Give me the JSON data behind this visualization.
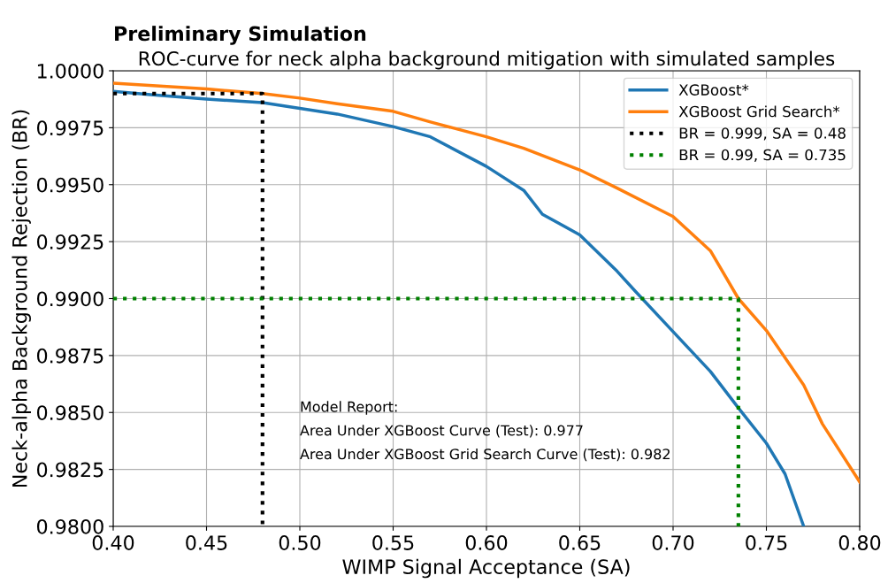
{
  "chart_data": {
    "type": "line",
    "title": "Preliminary Simulation",
    "subtitle": "ROC-curve for neck alpha background mitigation with simulated samples",
    "xlabel": "WIMP Signal Acceptance (SA)",
    "ylabel": "Neck-alpha Background Rejection (BR)",
    "series": [
      {
        "name": "XGBoost*",
        "color": "#1f77b4",
        "line_style": "solid",
        "x": [
          0.4,
          0.42,
          0.45,
          0.48,
          0.5,
          0.52,
          0.55,
          0.57,
          0.6,
          0.62,
          0.63,
          0.65,
          0.67,
          0.68,
          0.7,
          0.72,
          0.735,
          0.75,
          0.76,
          0.77
        ],
        "values": [
          0.9991,
          0.99895,
          0.99876,
          0.9986,
          0.99835,
          0.9981,
          0.99755,
          0.9971,
          0.9958,
          0.99475,
          0.9937,
          0.9928,
          0.9912,
          0.9903,
          0.98855,
          0.9868,
          0.9852,
          0.98365,
          0.9823,
          0.98
        ]
      },
      {
        "name": "XGBoost Grid Search*",
        "color": "#ff7f0e",
        "line_style": "solid",
        "x": [
          0.4,
          0.45,
          0.48,
          0.5,
          0.52,
          0.55,
          0.57,
          0.6,
          0.62,
          0.65,
          0.67,
          0.7,
          0.72,
          0.735,
          0.75,
          0.77,
          0.78,
          0.8
        ],
        "values": [
          0.99946,
          0.9992,
          0.999,
          0.9988,
          0.99855,
          0.99822,
          0.99775,
          0.9971,
          0.9966,
          0.99565,
          0.99485,
          0.9936,
          0.9921,
          0.99,
          0.9886,
          0.9862,
          0.9845,
          0.98195
        ]
      },
      {
        "name": "BR = 0.999, SA = 0.48",
        "color": "#000000",
        "line_style": "dotted",
        "x": [
          0.4,
          0.48,
          0.48
        ],
        "values": [
          0.999,
          0.999,
          0.98
        ]
      },
      {
        "name": "BR = 0.99, SA = 0.735",
        "color": "#008000",
        "line_style": "dotted",
        "x": [
          0.4,
          0.735,
          0.735
        ],
        "values": [
          0.99,
          0.99,
          0.98
        ]
      }
    ],
    "annotations": [
      "Model Report:",
      "Area Under XGBoost Curve (Test): 0.977",
      "Area Under XGBoost Grid Search Curve (Test): 0.982"
    ],
    "xlim": [
      0.4,
      0.8
    ],
    "xticks": [
      {
        "value": 0.4,
        "label": "0.40"
      },
      {
        "value": 0.45,
        "label": "0.45"
      },
      {
        "value": 0.5,
        "label": "0.50"
      },
      {
        "value": 0.55,
        "label": "0.55"
      },
      {
        "value": 0.6,
        "label": "0.60"
      },
      {
        "value": 0.65,
        "label": "0.65"
      },
      {
        "value": 0.7,
        "label": "0.70"
      },
      {
        "value": 0.75,
        "label": "0.75"
      },
      {
        "value": 0.8,
        "label": "0.80"
      }
    ],
    "ylim": [
      0.98,
      1.0
    ],
    "yticks": [
      {
        "value": 0.98,
        "label": "0.9800"
      },
      {
        "value": 0.9825,
        "label": "0.9825"
      },
      {
        "value": 0.985,
        "label": "0.9850"
      },
      {
        "value": 0.9875,
        "label": "0.9875"
      },
      {
        "value": 0.99,
        "label": "0.9900"
      },
      {
        "value": 0.9925,
        "label": "0.9925"
      },
      {
        "value": 0.995,
        "label": "0.9950"
      },
      {
        "value": 0.9975,
        "label": "0.9975"
      },
      {
        "value": 1.0,
        "label": "1.0000"
      }
    ],
    "grid": true,
    "legend": "top right"
  }
}
